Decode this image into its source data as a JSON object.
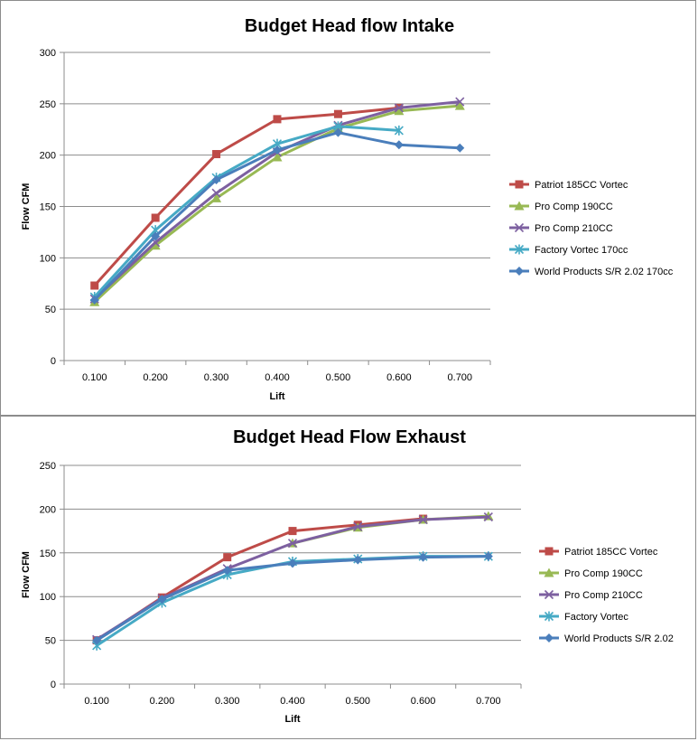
{
  "chart_data": [
    {
      "type": "line",
      "title": "Budget Head flow Intake",
      "xlabel": "Lift",
      "ylabel": "Flow CFM",
      "categories": [
        "0.100",
        "0.200",
        "0.300",
        "0.400",
        "0.500",
        "0.600",
        "0.700"
      ],
      "ylim": [
        0,
        300
      ],
      "yticks": [
        "0",
        "50",
        "100",
        "150",
        "200",
        "250",
        "300"
      ],
      "grid": true,
      "legend": "right",
      "series": [
        {
          "name": "Patriot 185CC Vortec",
          "color": "#be4b48",
          "marker": "square",
          "values": [
            73,
            139,
            201,
            235,
            240,
            246,
            null
          ]
        },
        {
          "name": "Pro Comp 190CC",
          "color": "#98b954",
          "marker": "triangle",
          "values": [
            57,
            112,
            158,
            198,
            226,
            243,
            248
          ]
        },
        {
          "name": "Pro Comp 210CC",
          "color": "#7d60a0",
          "marker": "x",
          "values": [
            60,
            115,
            163,
            203,
            229,
            246,
            252
          ]
        },
        {
          "name": "Factory Vortec 170cc",
          "color": "#46aac5",
          "marker": "star",
          "values": [
            62,
            127,
            178,
            211,
            228,
            224,
            null
          ]
        },
        {
          "name": "World Products S/R 2.02 170cc",
          "color": "#4a7ebb",
          "marker": "diamond",
          "values": [
            59,
            121,
            176,
            205,
            222,
            210,
            207
          ]
        }
      ]
    },
    {
      "type": "line",
      "title": "Budget Head Flow Exhaust",
      "xlabel": "Lift",
      "ylabel": "Flow CFM",
      "categories": [
        "0.100",
        "0.200",
        "0.300",
        "0.400",
        "0.500",
        "0.600",
        "0.700"
      ],
      "ylim": [
        0,
        250
      ],
      "yticks": [
        "0",
        "50",
        "100",
        "150",
        "200",
        "250"
      ],
      "grid": true,
      "legend": "right",
      "series": [
        {
          "name": "Patriot 185CC Vortec",
          "color": "#be4b48",
          "marker": "square",
          "values": [
            50,
            99,
            145,
            175,
            182,
            189,
            null
          ]
        },
        {
          "name": "Pro Comp 190CC",
          "color": "#98b954",
          "marker": "triangle",
          "values": [
            null,
            null,
            null,
            161,
            179,
            188,
            192
          ]
        },
        {
          "name": "Pro Comp 210CC",
          "color": "#7d60a0",
          "marker": "x",
          "values": [
            51,
            98,
            132,
            161,
            180,
            188,
            191
          ]
        },
        {
          "name": "Factory Vortec",
          "color": "#46aac5",
          "marker": "star",
          "values": [
            44,
            93,
            125,
            140,
            143,
            146,
            146
          ]
        },
        {
          "name": "World Products S/R 2.02",
          "color": "#4a7ebb",
          "marker": "diamond",
          "values": [
            50,
            97,
            130,
            138,
            142,
            145,
            146
          ]
        }
      ]
    }
  ]
}
